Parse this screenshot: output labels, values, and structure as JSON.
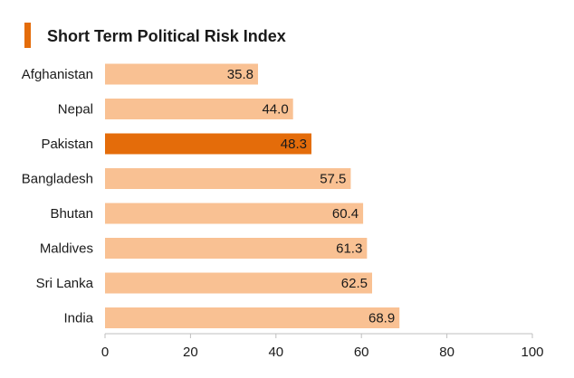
{
  "chart_data": {
    "type": "bar",
    "orientation": "horizontal",
    "title": "Short Term Political Risk Index",
    "categories": [
      "Afghanistan",
      "Nepal",
      "Pakistan",
      "Bangladesh",
      "Bhutan",
      "Maldives",
      "Sri Lanka",
      "India"
    ],
    "values": [
      35.8,
      44.0,
      48.3,
      57.5,
      60.4,
      61.3,
      62.5,
      68.9
    ],
    "value_labels": [
      "35.8",
      "44.0",
      "48.3",
      "57.5",
      "60.4",
      "61.3",
      "62.5",
      "68.9"
    ],
    "highlight_category": "Pakistan",
    "xlim": [
      0,
      100
    ],
    "xticks": [
      0,
      20,
      40,
      60,
      80,
      100
    ],
    "xtick_labels": [
      "0",
      "20",
      "40",
      "60",
      "80",
      "100"
    ],
    "xlabel": "",
    "ylabel": "",
    "grid": false,
    "colors": {
      "bar": "#f9c193",
      "highlight": "#e46c0a",
      "title_accent": "#e46c0a",
      "axis": "#bfbfbf"
    }
  }
}
